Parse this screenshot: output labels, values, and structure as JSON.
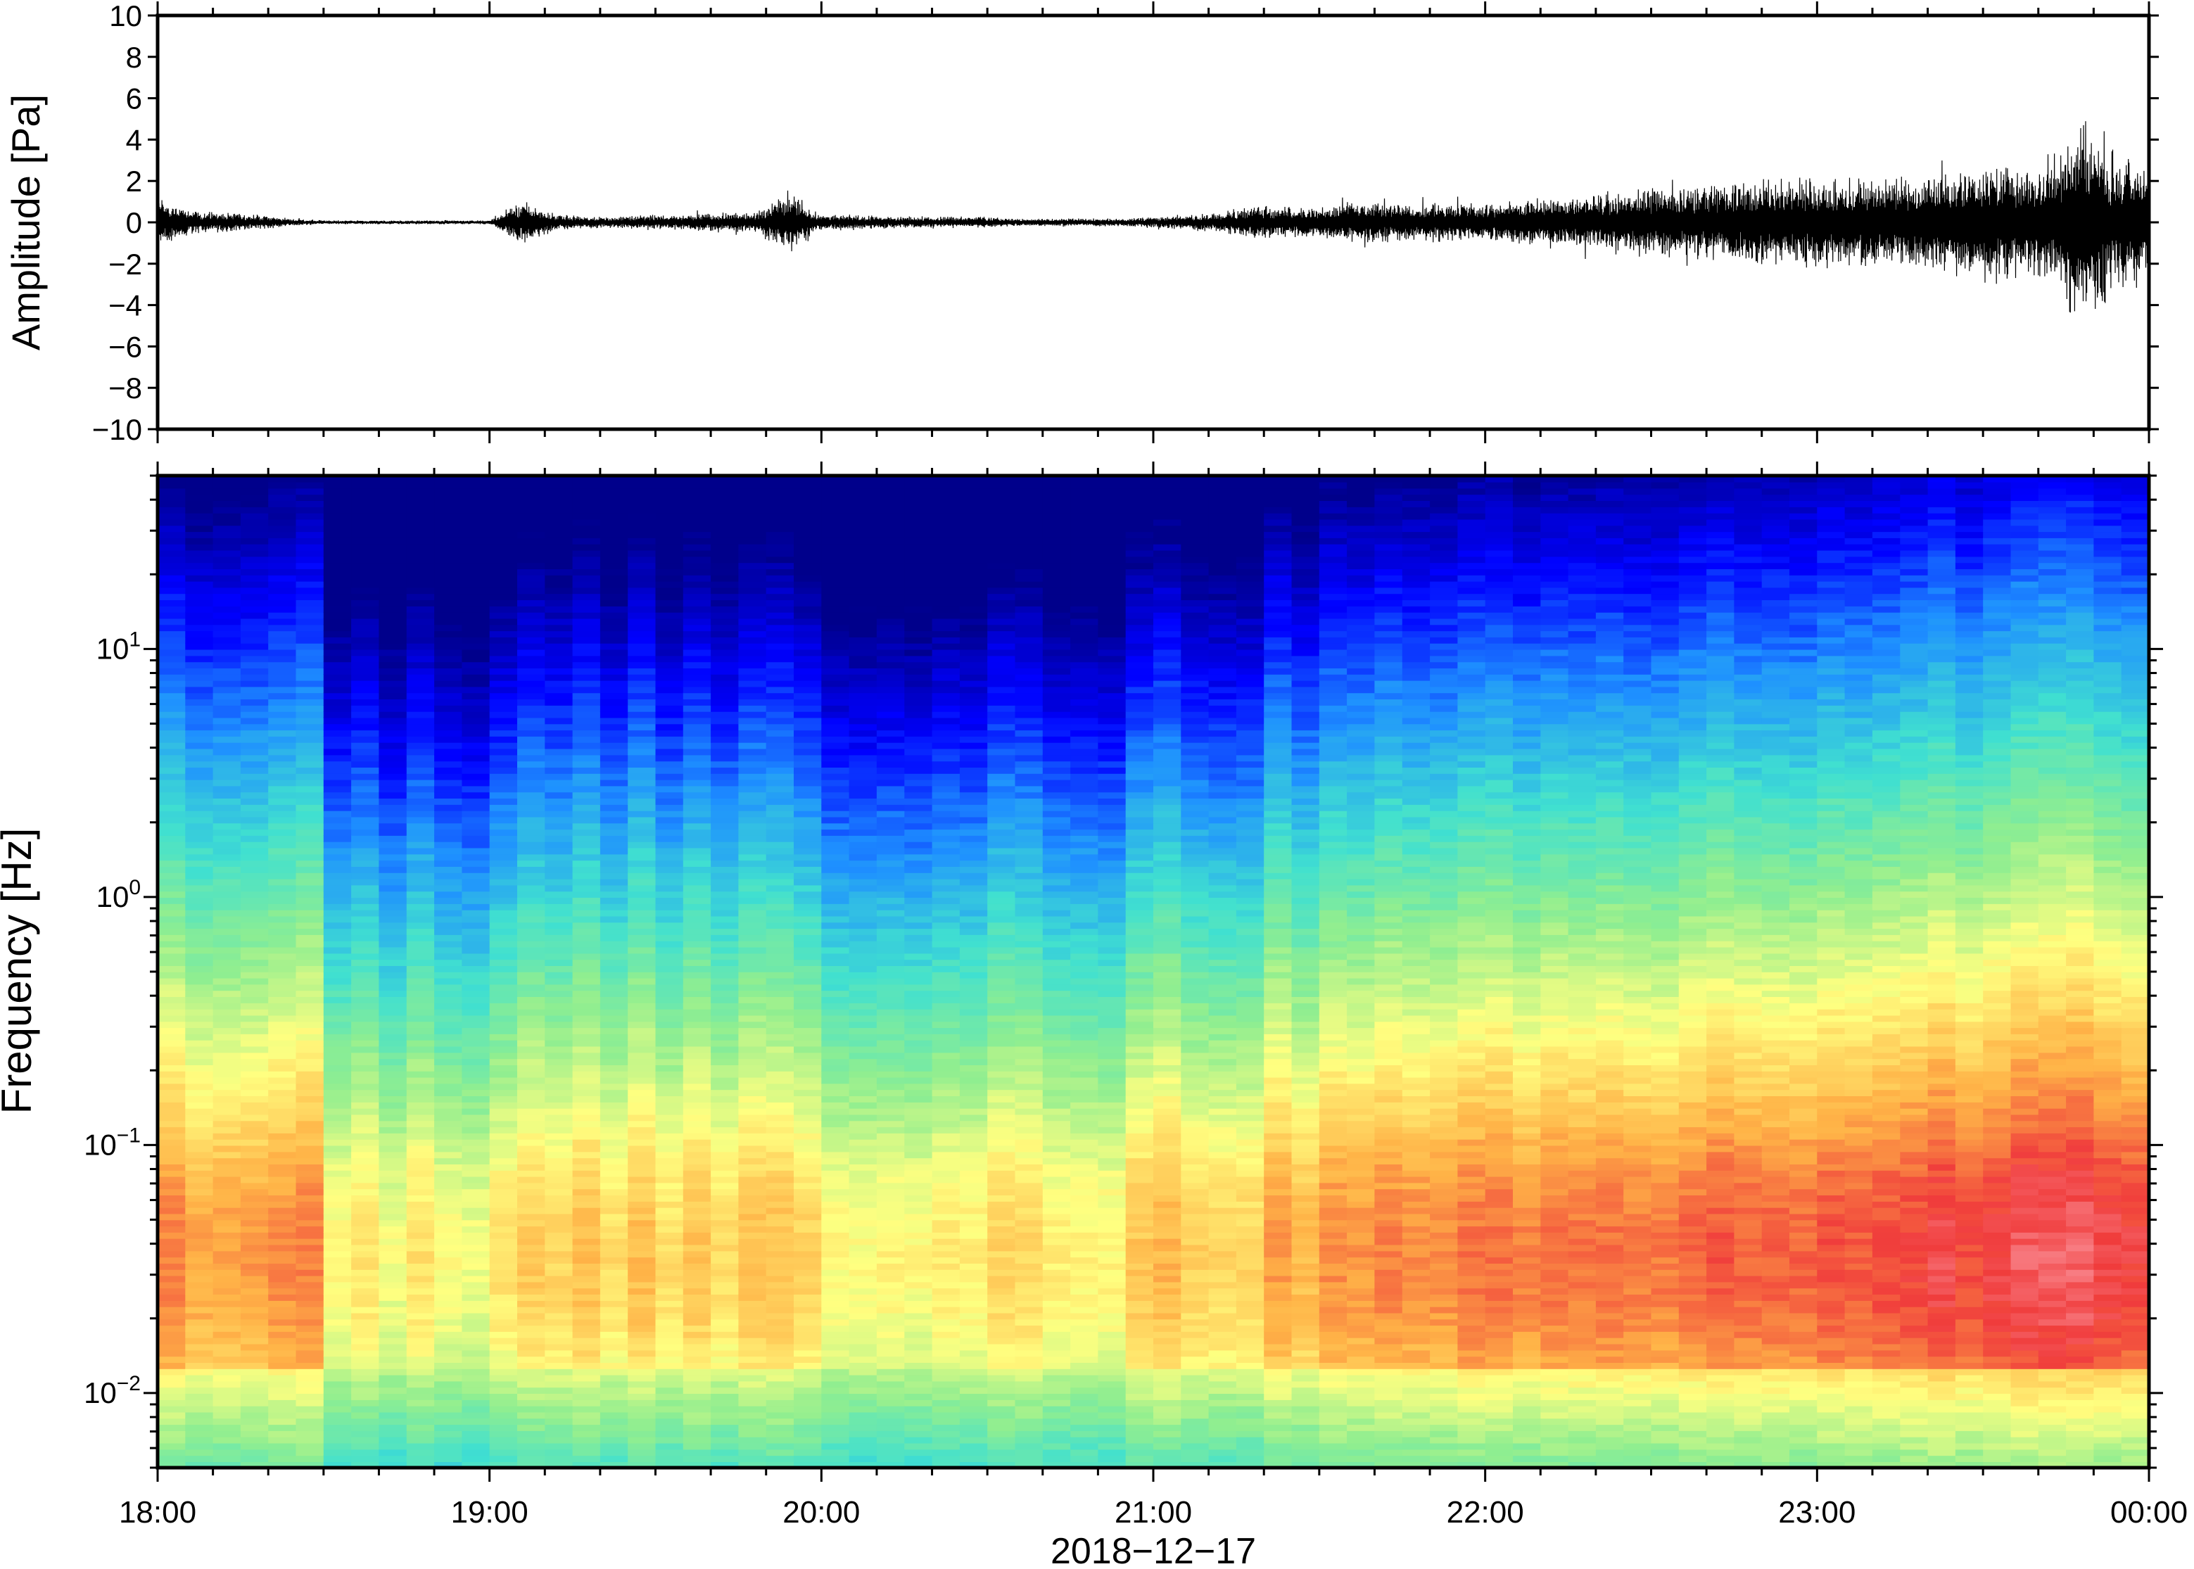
{
  "chart_data": [
    {
      "type": "line",
      "panel": "waveform",
      "ylabel": "Amplitude [Pa]",
      "ylim": [
        -10,
        10
      ],
      "yticks": [
        -10,
        -8,
        -6,
        -4,
        -2,
        0,
        2,
        4,
        6,
        8,
        10
      ],
      "ytick_labels": [
        "−10",
        "−8",
        "−6",
        "−4",
        "−2",
        "0",
        "2",
        "4",
        "6",
        "8",
        "10"
      ],
      "xlim": [
        "18:00",
        "00:00"
      ],
      "grid": false,
      "series": [
        {
          "x_hours": [
            18.0,
            18.1,
            18.2,
            18.3,
            18.4,
            18.5,
            18.6,
            18.7,
            18.8,
            18.9,
            19.0,
            19.1,
            19.2,
            19.3,
            19.4,
            19.5,
            19.6,
            19.7,
            19.8,
            19.9,
            20.0,
            20.1,
            20.2,
            20.3,
            20.4,
            20.5,
            20.6,
            20.7,
            20.8,
            20.9,
            21.0,
            21.1,
            21.2,
            21.3,
            21.4,
            21.5,
            21.6,
            21.7,
            21.8,
            21.9,
            22.0,
            22.1,
            22.2,
            22.3,
            22.4,
            22.5,
            22.6,
            22.7,
            22.8,
            22.9,
            23.0,
            23.1,
            23.2,
            23.3,
            23.4,
            23.5,
            23.6,
            23.7,
            23.8,
            23.9,
            24.0
          ],
          "amplitude_envelope": [
            1.3,
            0.6,
            0.5,
            0.4,
            0.2,
            0.1,
            0.1,
            0.1,
            0.1,
            0.1,
            0.1,
            1.2,
            0.4,
            0.3,
            0.3,
            0.4,
            0.4,
            0.5,
            0.5,
            1.6,
            0.4,
            0.4,
            0.3,
            0.3,
            0.3,
            0.3,
            0.2,
            0.2,
            0.2,
            0.2,
            0.3,
            0.4,
            0.5,
            0.9,
            0.8,
            0.8,
            1.2,
            1.0,
            1.0,
            1.0,
            1.0,
            1.2,
            1.3,
            1.4,
            1.6,
            1.8,
            1.8,
            2.0,
            2.2,
            2.2,
            2.4,
            2.4,
            2.4,
            2.5,
            2.6,
            3.0,
            3.0,
            3.0,
            5.6,
            3.4,
            3.2
          ]
        }
      ]
    },
    {
      "type": "heatmap",
      "panel": "spectrogram",
      "ylabel": "Frequency [Hz]",
      "yscale": "log",
      "ylim": [
        0.005,
        50
      ],
      "ytick_labels": [
        {
          "base": "10",
          "exp": "−2",
          "value": 0.01
        },
        {
          "base": "10",
          "exp": "−1",
          "value": 0.1
        },
        {
          "base": "10",
          "exp": "0",
          "value": 1
        },
        {
          "base": "10",
          "exp": "1",
          "value": 10
        }
      ],
      "xlabel": "2018−12−17",
      "xticks": [
        "18:00",
        "19:00",
        "20:00",
        "21:00",
        "22:00",
        "23:00",
        "00:00"
      ],
      "xlim": [
        "18:00",
        "00:00"
      ],
      "colormap": "rainbow (dark blue = low power, red/pink = high power)",
      "colormap_stops": [
        "#00008b",
        "#0000ff",
        "#1e90ff",
        "#40e0d0",
        "#90ee90",
        "#ffff80",
        "#ffb347",
        "#f03c3c",
        "#ffb6c1"
      ],
      "colorbar": false
    }
  ]
}
